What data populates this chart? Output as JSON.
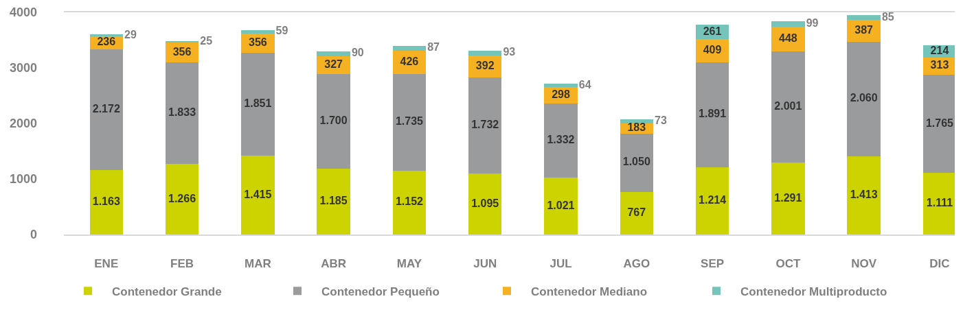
{
  "chart_data": {
    "type": "bar",
    "stacked": true,
    "categories": [
      "ENE",
      "FEB",
      "MAR",
      "ABR",
      "MAY",
      "JUN",
      "JUL",
      "AGO",
      "SEP",
      "OCT",
      "NOV",
      "DIC"
    ],
    "series": [
      {
        "name": "Contenedor Grande",
        "color": "#ccd300",
        "values": [
          1163,
          1266,
          1415,
          1185,
          1152,
          1095,
          1021,
          767,
          1214,
          1291,
          1413,
          1111
        ],
        "value_labels": [
          "1.163",
          "1.266",
          "1.415",
          "1.185",
          "1.152",
          "1.095",
          "1.021",
          "767",
          "1.214",
          "1.291",
          "1.413",
          "1.111"
        ]
      },
      {
        "name": "Contenedor Pequeño",
        "color": "#9a9b9d",
        "values": [
          2172,
          1833,
          1851,
          1700,
          1735,
          1732,
          1332,
          1050,
          1891,
          2001,
          2060,
          1765
        ],
        "value_labels": [
          "2.172",
          "1.833",
          "1.851",
          "1.700",
          "1.735",
          "1.732",
          "1.332",
          "1.050",
          "1.891",
          "2.001",
          "2.060",
          "1.765"
        ]
      },
      {
        "name": "Contenedor Mediano",
        "color": "#f6b122",
        "values": [
          236,
          356,
          356,
          327,
          426,
          392,
          298,
          183,
          409,
          448,
          387,
          313
        ],
        "value_labels": [
          "236",
          "356",
          "356",
          "327",
          "426",
          "392",
          "298",
          "183",
          "409",
          "448",
          "387",
          "313"
        ]
      },
      {
        "name": "Contenedor Multiproducto",
        "color": "#74c4b9",
        "values": [
          29,
          25,
          59,
          90,
          87,
          93,
          64,
          73,
          261,
          99,
          85,
          214
        ],
        "value_labels": [
          "29",
          "25",
          "59",
          "90",
          "87",
          "93",
          "64",
          "73",
          "261",
          "99",
          "85",
          "214"
        ]
      }
    ],
    "ylim": [
      0,
      4000
    ],
    "yticks": [
      0,
      1000,
      2000,
      3000,
      4000
    ],
    "grid": false,
    "legend": "bottom"
  }
}
